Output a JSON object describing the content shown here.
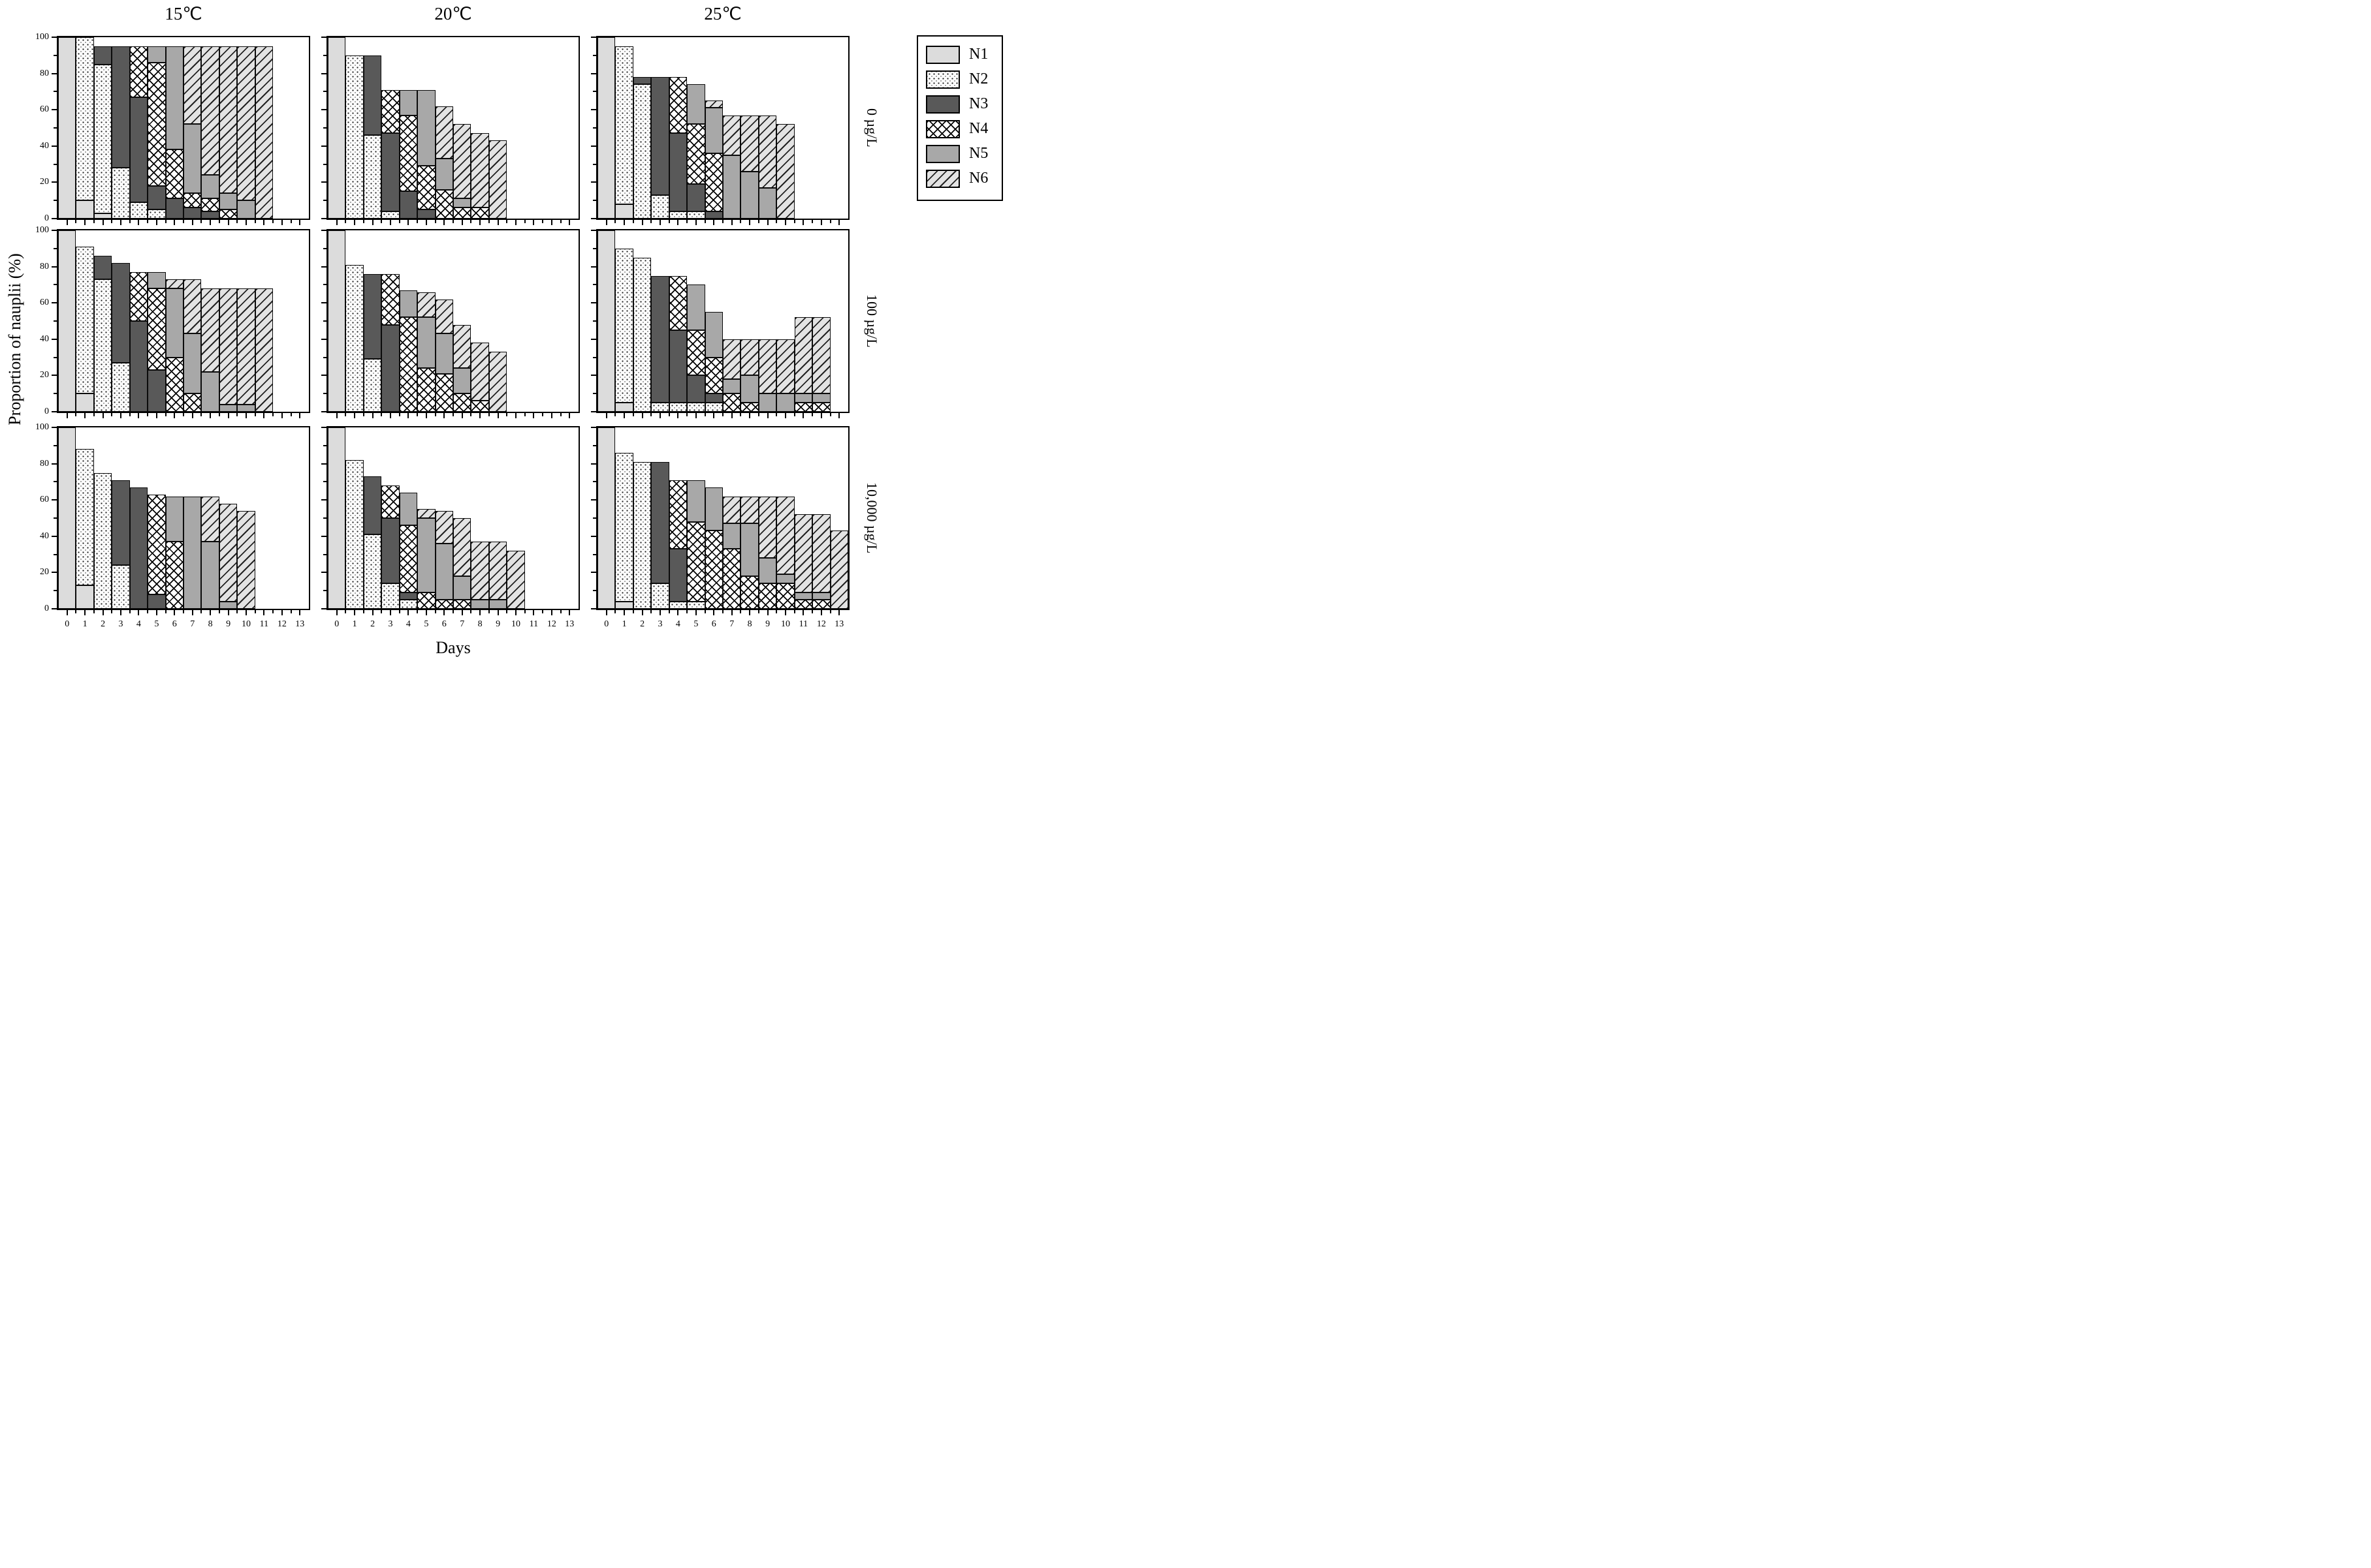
{
  "chart_data": {
    "type": "bar",
    "variant": "stacked-bar-small-multiples",
    "x_label": "Days",
    "y_label": "Proportion of nauplii (%)",
    "columns": [
      "15℃",
      "20℃",
      "25℃"
    ],
    "rows": [
      "0 µg/L",
      "100 µg/L",
      "10,000 µg/L"
    ],
    "series_names": [
      "N1",
      "N2",
      "N3",
      "N4",
      "N5",
      "N6"
    ],
    "y_ticks": [
      0,
      20,
      40,
      60,
      80,
      100
    ],
    "y_minor_ticks": [
      10,
      30,
      50,
      70,
      90
    ],
    "x_ticks": [
      0,
      1,
      2,
      3,
      4,
      5,
      6,
      7,
      8,
      9,
      10,
      11,
      12,
      13
    ],
    "ylim": [
      0,
      100
    ],
    "grid": "off",
    "legend_position": "top-right-outside",
    "colors": {
      "n1_fill": "#dcdcdc",
      "n2_fill": "#ffffff",
      "n3_fill": "#595959",
      "n4_fill": "#ffffff",
      "n5_fill": "#a8a8a8",
      "n6_fill": "#e3e3e3",
      "line": "#000000"
    },
    "patterns": [
      "light-gray-solid",
      "dotted",
      "dark-gray-solid",
      "crosshatch",
      "mid-gray-solid",
      "diagonal-stripes"
    ],
    "panels": [
      [
        {
          "temperature": "15℃",
          "concentration": "0 µg/L",
          "values_by_day": [
            [
              100,
              0,
              0,
              0,
              0,
              0
            ],
            [
              10,
              90,
              0,
              0,
              0,
              0
            ],
            [
              3,
              82,
              10,
              0,
              0,
              0
            ],
            [
              0,
              28,
              67,
              0,
              0,
              0
            ],
            [
              0,
              9,
              58,
              28,
              0,
              0
            ],
            [
              0,
              5,
              13,
              68,
              9,
              0
            ],
            [
              0,
              0,
              11,
              27,
              57,
              0
            ],
            [
              0,
              0,
              6,
              8,
              38,
              43
            ],
            [
              0,
              0,
              4,
              7,
              13,
              71
            ],
            [
              0,
              0,
              0,
              5,
              9,
              81
            ],
            [
              0,
              0,
              0,
              0,
              10,
              85
            ],
            [
              0,
              0,
              0,
              0,
              0,
              95
            ]
          ]
        },
        {
          "temperature": "20℃",
          "concentration": "0 µg/L",
          "values_by_day": [
            [
              100,
              0,
              0,
              0,
              0,
              0
            ],
            [
              0,
              90,
              0,
              0,
              0,
              0
            ],
            [
              0,
              46,
              44,
              0,
              0,
              0
            ],
            [
              0,
              4,
              43,
              24,
              0,
              0
            ],
            [
              0,
              0,
              15,
              42,
              14,
              0
            ],
            [
              0,
              0,
              5,
              24,
              42,
              0
            ],
            [
              0,
              0,
              0,
              16,
              17,
              29
            ],
            [
              0,
              0,
              0,
              6,
              5,
              41
            ],
            [
              0,
              0,
              0,
              6,
              0,
              41
            ],
            [
              0,
              0,
              0,
              0,
              0,
              43
            ]
          ]
        },
        {
          "temperature": "25℃",
          "concentration": "0 µg/L",
          "values_by_day": [
            [
              100,
              0,
              0,
              0,
              0,
              0
            ],
            [
              8,
              87,
              0,
              0,
              0,
              0
            ],
            [
              0,
              74,
              4,
              0,
              0,
              0
            ],
            [
              0,
              13,
              65,
              0,
              0,
              0
            ],
            [
              0,
              4,
              43,
              31,
              0,
              0
            ],
            [
              0,
              4,
              15,
              33,
              22,
              0
            ],
            [
              0,
              0,
              4,
              32,
              25,
              4
            ],
            [
              0,
              0,
              0,
              0,
              35,
              22
            ],
            [
              0,
              0,
              0,
              0,
              26,
              31
            ],
            [
              0,
              0,
              0,
              0,
              17,
              40
            ],
            [
              0,
              0,
              0,
              0,
              0,
              52
            ]
          ]
        }
      ],
      [
        {
          "temperature": "15℃",
          "concentration": "100 µg/L",
          "values_by_day": [
            [
              100,
              0,
              0,
              0,
              0,
              0
            ],
            [
              10,
              81,
              0,
              0,
              0,
              0
            ],
            [
              0,
              73,
              13,
              0,
              0,
              0
            ],
            [
              0,
              27,
              55,
              0,
              0,
              0
            ],
            [
              0,
              0,
              50,
              27,
              0,
              0
            ],
            [
              0,
              0,
              23,
              45,
              9,
              0
            ],
            [
              0,
              0,
              0,
              30,
              38,
              5
            ],
            [
              0,
              0,
              0,
              10,
              33,
              30
            ],
            [
              0,
              0,
              0,
              0,
              22,
              46
            ],
            [
              0,
              0,
              0,
              0,
              4,
              64
            ],
            [
              0,
              0,
              0,
              0,
              4,
              64
            ],
            [
              0,
              0,
              0,
              0,
              0,
              68
            ]
          ]
        },
        {
          "temperature": "20℃",
          "concentration": "100 µg/L",
          "values_by_day": [
            [
              100,
              0,
              0,
              0,
              0,
              0
            ],
            [
              0,
              81,
              0,
              0,
              0,
              0
            ],
            [
              0,
              29,
              47,
              0,
              0,
              0
            ],
            [
              0,
              0,
              48,
              28,
              0,
              0
            ],
            [
              0,
              0,
              0,
              52,
              15,
              0
            ],
            [
              0,
              0,
              0,
              24,
              28,
              14
            ],
            [
              0,
              0,
              0,
              21,
              22,
              19
            ],
            [
              0,
              0,
              0,
              10,
              14,
              24
            ],
            [
              0,
              0,
              0,
              6,
              0,
              32
            ],
            [
              0,
              0,
              0,
              0,
              0,
              33
            ]
          ]
        },
        {
          "temperature": "25℃",
          "concentration": "100 µg/L",
          "values_by_day": [
            [
              100,
              0,
              0,
              0,
              0,
              0
            ],
            [
              5,
              85,
              0,
              0,
              0,
              0
            ],
            [
              0,
              85,
              0,
              0,
              0,
              0
            ],
            [
              0,
              5,
              70,
              0,
              0,
              0
            ],
            [
              0,
              5,
              40,
              30,
              0,
              0
            ],
            [
              0,
              5,
              15,
              25,
              25,
              0
            ],
            [
              0,
              5,
              5,
              20,
              25,
              0
            ],
            [
              0,
              0,
              0,
              10,
              8,
              22
            ],
            [
              0,
              0,
              0,
              5,
              15,
              20
            ],
            [
              0,
              0,
              0,
              0,
              10,
              30
            ],
            [
              0,
              0,
              0,
              0,
              10,
              30
            ],
            [
              0,
              0,
              0,
              5,
              5,
              42
            ],
            [
              0,
              0,
              0,
              5,
              5,
              42
            ]
          ]
        }
      ],
      [
        {
          "temperature": "15℃",
          "concentration": "10,000 µg/L",
          "values_by_day": [
            [
              100,
              0,
              0,
              0,
              0,
              0
            ],
            [
              13,
              75,
              0,
              0,
              0,
              0
            ],
            [
              0,
              75,
              0,
              0,
              0,
              0
            ],
            [
              0,
              24,
              47,
              0,
              0,
              0
            ],
            [
              0,
              0,
              67,
              0,
              0,
              0
            ],
            [
              0,
              0,
              8,
              55,
              0,
              0
            ],
            [
              0,
              0,
              0,
              37,
              25,
              0
            ],
            [
              0,
              0,
              0,
              0,
              62,
              0
            ],
            [
              0,
              0,
              0,
              0,
              37,
              25
            ],
            [
              0,
              0,
              0,
              0,
              4,
              54
            ],
            [
              0,
              0,
              0,
              0,
              0,
              54
            ]
          ]
        },
        {
          "temperature": "20℃",
          "concentration": "10,000 µg/L",
          "values_by_day": [
            [
              100,
              0,
              0,
              0,
              0,
              0
            ],
            [
              0,
              82,
              0,
              0,
              0,
              0
            ],
            [
              0,
              41,
              32,
              0,
              0,
              0
            ],
            [
              0,
              14,
              36,
              18,
              0,
              0
            ],
            [
              0,
              5,
              4,
              37,
              18,
              0
            ],
            [
              0,
              0,
              0,
              9,
              41,
              5
            ],
            [
              0,
              0,
              0,
              5,
              31,
              18
            ],
            [
              0,
              0,
              0,
              5,
              13,
              32
            ],
            [
              0,
              0,
              0,
              0,
              5,
              32
            ],
            [
              0,
              0,
              0,
              0,
              5,
              32
            ],
            [
              0,
              0,
              0,
              0,
              0,
              32
            ]
          ]
        },
        {
          "temperature": "25℃",
          "concentration": "10,000 µg/L",
          "values_by_day": [
            [
              100,
              0,
              0,
              0,
              0,
              0
            ],
            [
              4,
              82,
              0,
              0,
              0,
              0
            ],
            [
              0,
              81,
              0,
              0,
              0,
              0
            ],
            [
              0,
              14,
              67,
              0,
              0,
              0
            ],
            [
              0,
              4,
              29,
              38,
              0,
              0
            ],
            [
              0,
              4,
              0,
              44,
              23,
              0
            ],
            [
              0,
              0,
              0,
              43,
              24,
              0
            ],
            [
              0,
              0,
              0,
              33,
              14,
              15
            ],
            [
              0,
              0,
              0,
              18,
              29,
              15
            ],
            [
              0,
              0,
              0,
              14,
              14,
              34
            ],
            [
              0,
              0,
              0,
              14,
              5,
              43
            ],
            [
              0,
              0,
              0,
              5,
              4,
              43
            ],
            [
              0,
              0,
              0,
              5,
              4,
              43
            ],
            [
              0,
              0,
              0,
              0,
              0,
              43
            ]
          ]
        }
      ]
    ]
  },
  "legend": {
    "labels": [
      "N1",
      "N2",
      "N3",
      "N4",
      "N5",
      "N6"
    ]
  }
}
